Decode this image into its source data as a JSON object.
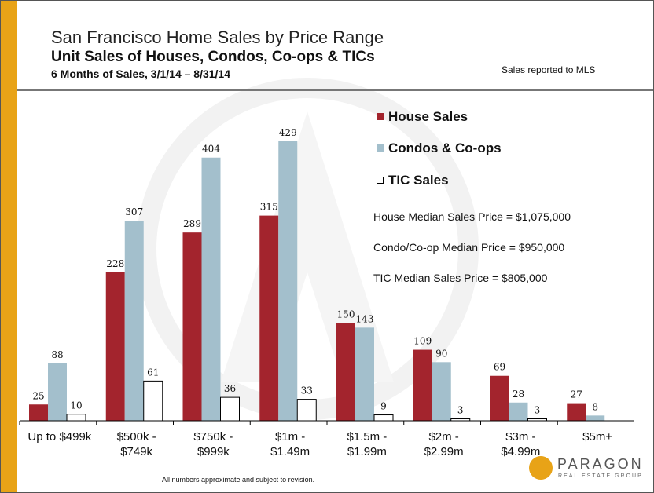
{
  "header": {
    "title": "San Francisco Home Sales by Price Range",
    "subtitle": "Unit Sales of Houses, Condos, Co-ops & TICs",
    "period": "6 Months of Sales, 3/1/14 – 8/31/14",
    "source_note": "Sales reported to MLS"
  },
  "medians": {
    "house": "House Median Sales Price = $1,075,000",
    "condo": "Condo/Co-op Median Price = $950,000",
    "tic": "TIC Median Sales Price = $805,000"
  },
  "footnote": "All numbers approximate and subject to revision.",
  "logo": {
    "name": "PARAGON",
    "tagline": "REAL ESTATE GROUP"
  },
  "colors": {
    "house": "#a3242d",
    "condo": "#a3bfcc",
    "tic": "#ffffff",
    "accent": "#e8a317"
  },
  "chart_data": {
    "type": "bar",
    "categories": [
      [
        "Up to $499k"
      ],
      [
        "$500k -",
        "$749k"
      ],
      [
        "$750k -",
        "$999k"
      ],
      [
        "$1m -",
        "$1.49m"
      ],
      [
        "$1.5m -",
        "$1.99m"
      ],
      [
        "$2m -",
        "$2.99m"
      ],
      [
        "$3m -",
        "$4.99m"
      ],
      [
        "$5m+"
      ]
    ],
    "series": [
      {
        "name": "House Sales",
        "values": [
          25,
          228,
          289,
          315,
          150,
          109,
          69,
          27
        ]
      },
      {
        "name": "Condos & Co-ops",
        "values": [
          88,
          307,
          404,
          429,
          143,
          90,
          28,
          8
        ]
      },
      {
        "name": "TIC Sales",
        "values": [
          10,
          61,
          36,
          33,
          9,
          3,
          3,
          null
        ]
      }
    ],
    "ylim": [
      0,
      450
    ],
    "grid": false,
    "legend_position": "top-right"
  }
}
